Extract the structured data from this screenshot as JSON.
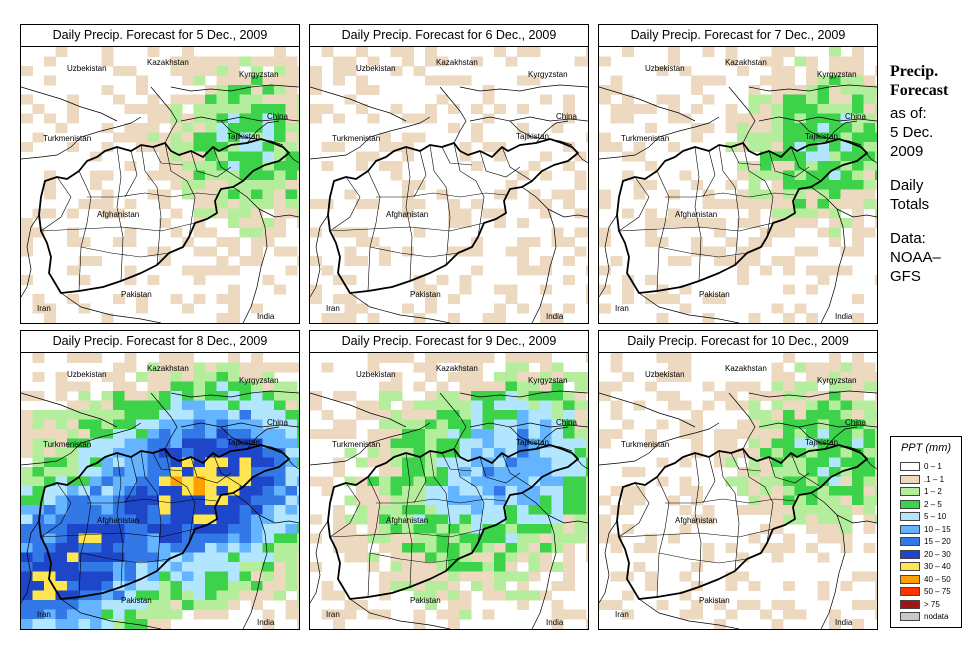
{
  "panels": [
    {
      "title": "Daily Precip. Forecast for  5 Dec., 2009",
      "level": 1
    },
    {
      "title": "Daily Precip. Forecast for  6 Dec., 2009",
      "level": 0
    },
    {
      "title": "Daily Precip. Forecast for  7 Dec., 2009",
      "level": 1
    },
    {
      "title": "Daily Precip. Forecast for  8 Dec., 2009",
      "level": 3
    },
    {
      "title": "Daily Precip. Forecast for  9 Dec., 2009",
      "level": 2
    },
    {
      "title": "Daily Precip. Forecast for  10 Dec., 2009",
      "level": 1
    }
  ],
  "countries": {
    "uzbekistan": "Uzbekistan",
    "kazakhstan": "Kazakhstan",
    "kyrgyzstan": "Kyrgyzstan",
    "china": "China",
    "turkmenistan": "Turkmenistan",
    "tajikistan": "Tajikistan",
    "afghanistan": "Afghanistan",
    "pakistan": "Pakistan",
    "iran": "Iran",
    "india": "India"
  },
  "side": {
    "title_line1": "Precip.",
    "title_line2": "Forecast",
    "asof_line1": "as of:",
    "asof_line2": "5 Dec.",
    "asof_line3": "2009",
    "totals_line1": "Daily",
    "totals_line2": "Totals",
    "data_line1": "Data:",
    "data_line2": "NOAA–",
    "data_line3": "GFS"
  },
  "legend": {
    "title": "PPT (mm)",
    "items": [
      {
        "label": "0 – 1",
        "color": "#ffffff"
      },
      {
        "label": ".1 – 1",
        "color": "#ecd9bf"
      },
      {
        "label": "1 – 2",
        "color": "#b4ee9c"
      },
      {
        "label": "2 – 5",
        "color": "#3cd24a"
      },
      {
        "label": "5 – 10",
        "color": "#b2e6ff"
      },
      {
        "label": "10 – 15",
        "color": "#64b4ff"
      },
      {
        "label": "15 – 20",
        "color": "#3278e6"
      },
      {
        "label": "20 – 30",
        "color": "#1e46c8"
      },
      {
        "label": "30 – 40",
        "color": "#ffe650"
      },
      {
        "label": "40 – 50",
        "color": "#ffa000"
      },
      {
        "label": "50 – 75",
        "color": "#ff3200"
      },
      {
        "label": "> 75",
        "color": "#a01414"
      },
      {
        "label": "nodata",
        "color": "#c8c8c8"
      }
    ]
  }
}
